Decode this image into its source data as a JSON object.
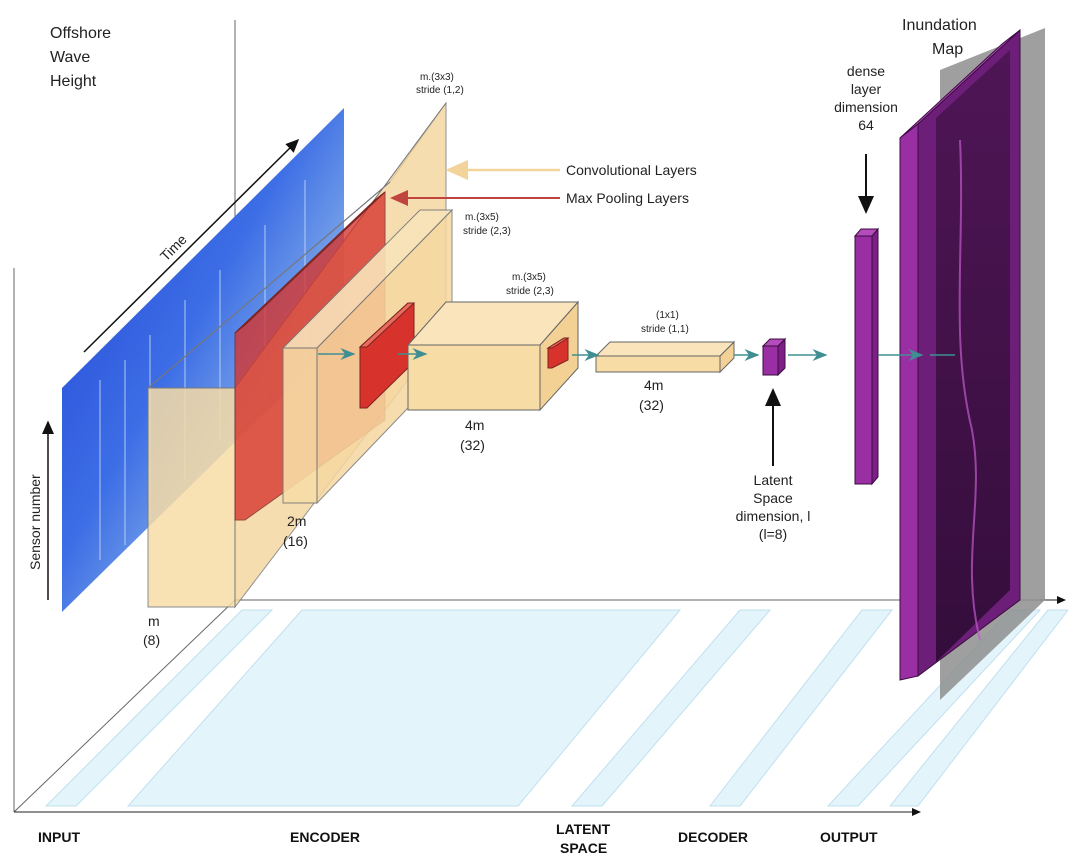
{
  "colors": {
    "conv": "#f7dca6",
    "pool": "#d7332c",
    "purple": "#9a2ea3",
    "wave": "#2a4fd6",
    "floor": "#e4f4fb",
    "arrow_teal": "#3f8f92"
  },
  "icons": [
    "arrow-right-icon",
    "arrow-down-icon",
    "arrow-up-icon"
  ],
  "title": {
    "l1": "Offshore",
    "l2": "Wave",
    "l3": "Height"
  },
  "axes": {
    "time": "Time",
    "sensor": "Sensor number"
  },
  "legend": {
    "conv": "Convolutional Layers",
    "pool": "Max Pooling Layers"
  },
  "layers": {
    "k1": {
      "l1": "m.(3x3)",
      "l2": "stride (1,2)"
    },
    "k2": {
      "l1": "m.(3x5)",
      "l2": "stride (2,3)"
    },
    "k3": {
      "l1": "m.(3x5)",
      "l2": "stride (2,3)"
    },
    "k4": {
      "l1": "(1x1)",
      "l2": "stride (1,1)"
    },
    "d1": {
      "l1": "m",
      "l2": "(8)"
    },
    "d2": {
      "l1": "2m",
      "l2": "(16)"
    },
    "d3": {
      "l1": "4m",
      "l2": "(32)"
    },
    "d4": {
      "l1": "4m",
      "l2": "(32)"
    }
  },
  "latent": {
    "l1": "Latent",
    "l2": "Space",
    "l3": "dimension, l",
    "l4": "(l=8)"
  },
  "dense": {
    "l1": "dense",
    "l2": "layer",
    "l3": "dimension",
    "l4": "64"
  },
  "output": {
    "l1": "Inundation",
    "l2": "Map"
  },
  "sections": {
    "input": "INPUT",
    "encoder": "ENCODER",
    "latent1": "LATENT",
    "latent2": "SPACE",
    "decoder": "DECODER",
    "output": "OUTPUT"
  }
}
